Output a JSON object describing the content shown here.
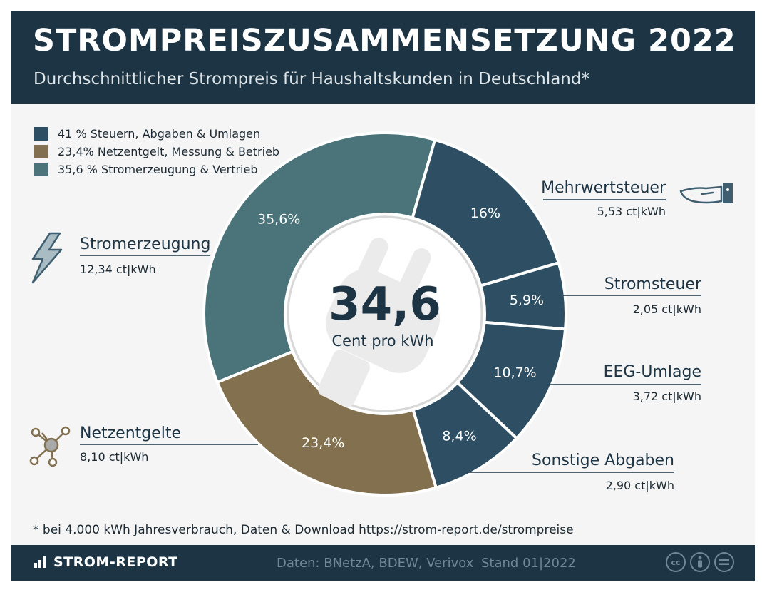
{
  "header": {
    "title": "STROMPREISZUSAMMENSETZUNG 2022",
    "subtitle": "Durchschnittlicher Strompreis für Haushaltskunden in Deutschland*"
  },
  "legend": [
    {
      "label": "41 % Steuern, Abgaben & Umlagen",
      "color": "#2e4f63"
    },
    {
      "label": "23,4% Netzentgelt, Messung & Betrieb",
      "color": "#82704f"
    },
    {
      "label": "35,6 % Stromerzeugung & Vertrieb",
      "color": "#4a7479"
    }
  ],
  "center": {
    "value": "34,6",
    "unit": "Cent pro kWh"
  },
  "chart_data": {
    "type": "pie",
    "total": 34.6,
    "total_unit": "Cent pro kWh",
    "slices": [
      {
        "name": "Mehrwertsteuer",
        "percent": 16,
        "percent_label": "16%",
        "value": 5.53,
        "value_label": "5,53 ct|kWh",
        "color": "#2e4f63"
      },
      {
        "name": "Stromsteuer",
        "percent": 5.9,
        "percent_label": "5,9%",
        "value": 2.05,
        "value_label": "2,05 ct|kWh",
        "color": "#2e4f63"
      },
      {
        "name": "EEG-Umlage",
        "percent": 10.7,
        "percent_label": "10,7%",
        "value": 3.72,
        "value_label": "3,72 ct|kWh",
        "color": "#2e4f63"
      },
      {
        "name": "Sonstige Abgaben",
        "percent": 8.4,
        "percent_label": "8,4%",
        "value": 2.9,
        "value_label": "2,90 ct|kWh",
        "color": "#2e4f63"
      },
      {
        "name": "Netzentgelte",
        "percent": 23.4,
        "percent_label": "23,4%",
        "value": 8.1,
        "value_label": "8,10 ct|kWh",
        "color": "#82704f"
      },
      {
        "name": "Stromerzeugung",
        "percent": 35.6,
        "percent_label": "35,6%",
        "value": 12.34,
        "value_label": "12,34 ct|kWh",
        "color": "#4a7479"
      }
    ]
  },
  "footnote": "* bei 4.000 kWh Jahresverbrauch, Daten & Download https://strom-report.de/strompreise",
  "footer": {
    "brand": "STROM-REPORT",
    "sources": "Daten: BNetzA, BDEW, Verivox",
    "stand": "Stand 01|2022",
    "license_icons": [
      "cc-icon",
      "attribution-icon",
      "no-derivatives-icon"
    ]
  }
}
